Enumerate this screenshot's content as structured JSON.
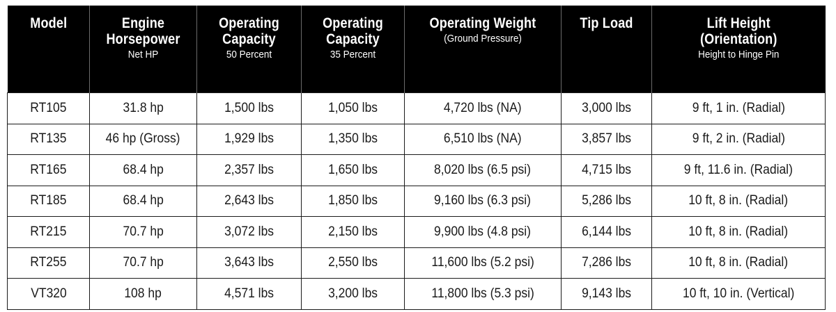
{
  "table": {
    "headers": [
      {
        "main": "Model",
        "sub": ""
      },
      {
        "main": "Engine Horsepower",
        "sub": "Net HP"
      },
      {
        "main": "Operating Capacity",
        "sub": "50 Percent"
      },
      {
        "main": "Operating Capacity",
        "sub": "35 Percent"
      },
      {
        "main": "Operating Weight",
        "sub": "(Ground Pressure)"
      },
      {
        "main": "Tip Load",
        "sub": ""
      },
      {
        "main": "Lift Height (Orientation)",
        "sub": "Height to Hinge Pin"
      }
    ],
    "header_lines": [
      [
        "Model"
      ],
      [
        "Engine",
        "Horsepower"
      ],
      [
        "Operating",
        "Capacity"
      ],
      [
        "Operating",
        "Capacity"
      ],
      [
        "Operating Weight"
      ],
      [
        "Tip Load"
      ],
      [
        "Lift Height",
        "(Orientation)"
      ]
    ],
    "rows": [
      [
        "RT105",
        "31.8 hp",
        "1,500 lbs",
        "1,050 lbs",
        "4,720 lbs (NA)",
        "3,000 lbs",
        "9 ft, 1 in. (Radial)"
      ],
      [
        "RT135",
        "46 hp (Gross)",
        "1,929 lbs",
        "1,350 lbs",
        "6,510 lbs (NA)",
        "3,857 lbs",
        "9 ft, 2 in. (Radial)"
      ],
      [
        "RT165",
        "68.4 hp",
        "2,357 lbs",
        "1,650 lbs",
        "8,020 lbs (6.5 psi)",
        "4,715 lbs",
        "9 ft, 11.6 in. (Radial)"
      ],
      [
        "RT185",
        "68.4 hp",
        "2,643 lbs",
        "1,850 lbs",
        "9,160 lbs (6.3 psi)",
        "5,286 lbs",
        "10 ft, 8 in. (Radial)"
      ],
      [
        "RT215",
        "70.7 hp",
        "3,072 lbs",
        "2,150 lbs",
        "9,900 lbs (4.8 psi)",
        "6,144 lbs",
        "10 ft, 8 in. (Radial)"
      ],
      [
        "RT255",
        "70.7 hp",
        "3,643 lbs",
        "2,550 lbs",
        "11,600 lbs (5.2 psi)",
        "7,286 lbs",
        "10 ft, 8 in. (Radial)"
      ],
      [
        "VT320",
        "108 hp",
        "4,571 lbs",
        "3,200 lbs",
        "11,800 lbs (5.3 psi)",
        "9,143 lbs",
        "10 ft, 10 in. (Vertical)"
      ]
    ]
  },
  "colors": {
    "header_bg": "#000000",
    "header_text": "#ffffff",
    "cell_border": "#1a1a1a",
    "body_text": "#1a1a1a"
  }
}
